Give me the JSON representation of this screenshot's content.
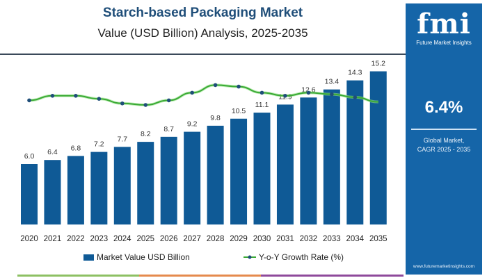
{
  "chart_data": {
    "type": "bar",
    "title": "Starch-based Packaging Market",
    "subtitle": "Value (USD Billion) Analysis, 2025-2035",
    "categories": [
      "2020",
      "2021",
      "2022",
      "2023",
      "2024",
      "2025",
      "2026",
      "2027",
      "2028",
      "2029",
      "2030",
      "2031",
      "2032",
      "2033",
      "2034",
      "2035"
    ],
    "series": [
      {
        "name": "Market Value USD Billion",
        "type": "bar",
        "color": "#0f5a96",
        "values": [
          6.0,
          6.4,
          6.8,
          7.2,
          7.7,
          8.2,
          8.7,
          9.2,
          9.8,
          10.5,
          11.1,
          11.9,
          12.6,
          13.4,
          14.3,
          15.2
        ]
      },
      {
        "name": "Y-o-Y Growth Rate (%)",
        "type": "line",
        "color": "#3aa935",
        "values": [
          6.2,
          6.5,
          6.5,
          6.3,
          6.0,
          5.9,
          6.2,
          6.7,
          7.2,
          7.1,
          6.7,
          6.5,
          6.7,
          6.6,
          6.4,
          6.1
        ]
      }
    ],
    "ylim": [
      0,
      16
    ],
    "grid": false,
    "legend": "bottom"
  },
  "sidebar": {
    "logo_text": "fmi",
    "logo_subtext": "Future Market Insights",
    "cagr_value": "6.4%",
    "cagr_label_1": "Global Market,",
    "cagr_label_2": "CAGR 2025 - 2035",
    "website": "www.futuremarketinsights.com",
    "color": "#1565a8"
  },
  "footer_stripe_colors": [
    "#8dc063",
    "#e58a4e",
    "#8e4a9b"
  ]
}
